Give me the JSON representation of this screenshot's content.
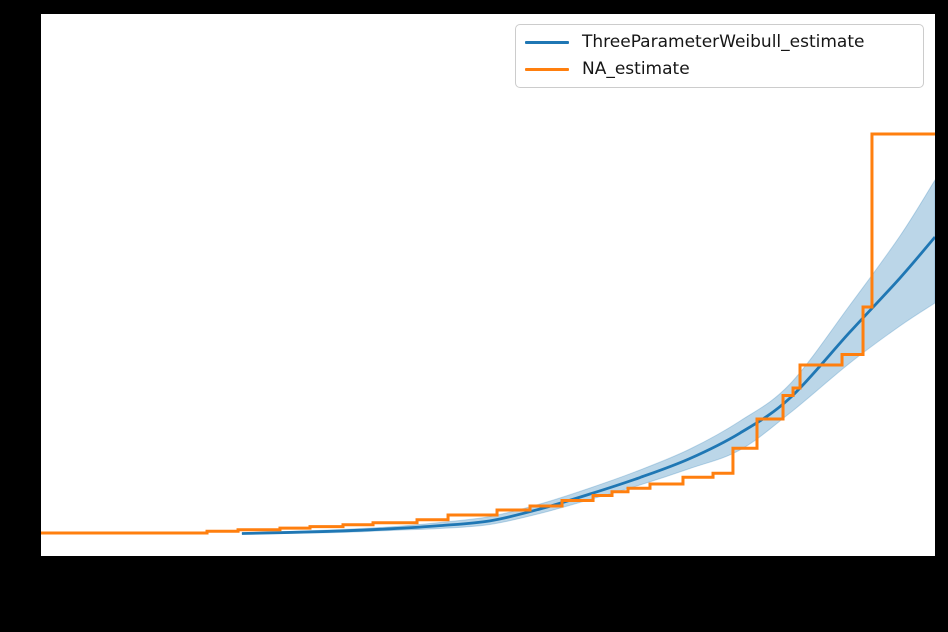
{
  "figure": {
    "background_color": "#000000",
    "axes_background_color": "#ffffff"
  },
  "legend": {
    "items": [
      {
        "label": "ThreeParameterWeibull_estimate",
        "color": "#1f77b4"
      },
      {
        "label": "NA_estimate",
        "color": "#ff7f0e"
      }
    ]
  },
  "chart_data": {
    "type": "line",
    "title": "",
    "xlabel": "",
    "ylabel": "",
    "axis_tick_labels_visible": false,
    "grid": false,
    "legend_position": "upper right",
    "coords": "axes_fraction (x: 0=left edge to 1=right edge; y: 0=bottom edge to 1=top edge of plot area; no numeric axis labels are visible in the image)",
    "series": [
      {
        "name": "ThreeParameterWeibull_estimate",
        "style": "smooth",
        "color": "#1f77b4",
        "line_width": 2.8,
        "x": [
          0.2248,
          0.2785,
          0.3345,
          0.3904,
          0.4463,
          0.5022,
          0.5581,
          0.6141,
          0.67,
          0.7259,
          0.7819,
          0.8378,
          0.9049,
          0.9608,
          1.0
        ],
        "y": [
          0.0415,
          0.0435,
          0.0461,
          0.0502,
          0.0561,
          0.0649,
          0.0867,
          0.1144,
          0.1448,
          0.1799,
          0.2269,
          0.2915,
          0.4133,
          0.5129,
          0.5886
        ],
        "confidence_band": {
          "fill_color": "#1f77b4",
          "fill_alpha": 0.3,
          "upper_y": [
            0.0424,
            0.045,
            0.0489,
            0.0537,
            0.0618,
            0.0729,
            0.0959,
            0.1255,
            0.1587,
            0.1974,
            0.2491,
            0.3173,
            0.4631,
            0.5904,
            0.6937
          ],
          "lower_y": [
            0.0406,
            0.0424,
            0.0434,
            0.0471,
            0.0507,
            0.0581,
            0.0784,
            0.1042,
            0.131,
            0.1614,
            0.1956,
            0.2638,
            0.3561,
            0.4244,
            0.4668
          ]
        }
      },
      {
        "name": "NA_estimate",
        "style": "step-post",
        "color": "#ff7f0e",
        "line_width": 3,
        "x": [
          0.0,
          0.1857,
          0.2204,
          0.2673,
          0.3009,
          0.3378,
          0.3714,
          0.4206,
          0.4553,
          0.5101,
          0.547,
          0.5828,
          0.6175,
          0.6387,
          0.6566,
          0.6812,
          0.7181,
          0.7517,
          0.774,
          0.8009,
          0.83,
          0.8412,
          0.849,
          0.896,
          0.9195,
          0.9295,
          1.0
        ],
        "y": [
          0.0424,
          0.0456,
          0.0485,
          0.0515,
          0.0542,
          0.0576,
          0.0613,
          0.0668,
          0.0756,
          0.0849,
          0.0923,
          0.1024,
          0.1116,
          0.1185,
          0.1249,
          0.1328,
          0.1454,
          0.1526,
          0.1987,
          0.2528,
          0.2961,
          0.31,
          0.3524,
          0.3718,
          0.4594,
          0.7786,
          0.7786
        ]
      }
    ]
  }
}
